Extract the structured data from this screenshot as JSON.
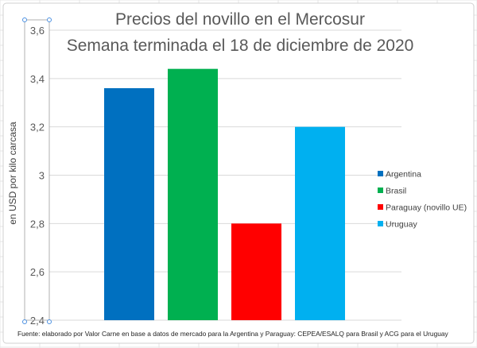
{
  "chart_data": {
    "type": "bar",
    "title": "Precios del novillo en el Mercosur",
    "subtitle": "Semana terminada el 18 de diciembre de 2020",
    "xlabel": "",
    "ylabel": "en USD por kilo carcasa",
    "ylim": [
      2.4,
      3.6
    ],
    "yticks": [
      2.4,
      2.6,
      2.8,
      3.0,
      3.2,
      3.4,
      3.6
    ],
    "ytick_labels": [
      "2,4",
      "2,6",
      "2,8",
      "3",
      "3,2",
      "3,4",
      "3,6"
    ],
    "grid": true,
    "legend_position": "right",
    "categories": [
      "Argentina",
      "Brasil",
      "Paraguay (novillo UE)",
      "Uruguay"
    ],
    "values": [
      3.36,
      3.44,
      2.8,
      3.2
    ],
    "colors": [
      "#0070c0",
      "#00b050",
      "#ff0000",
      "#00b0f0"
    ],
    "source": "Fuente: elaborado por Valor Carne en base a datos de mercado para la Argentina y Paraguay: CEPEA/ESALQ para Brasil y ACG para el Uruguay"
  }
}
